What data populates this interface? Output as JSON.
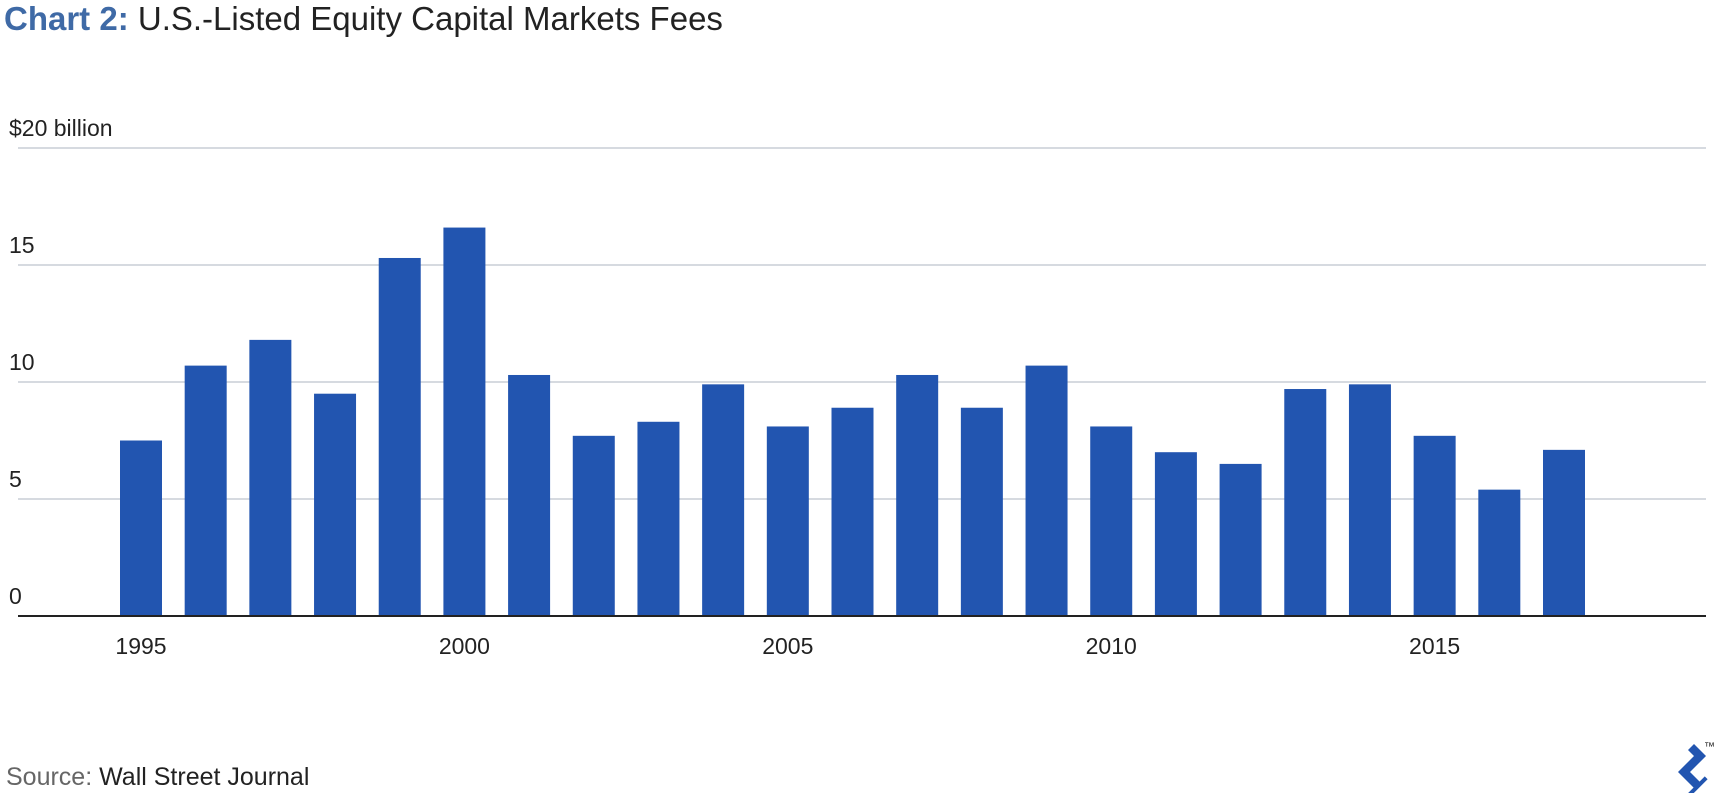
{
  "header": {
    "chart_label": "Chart 2:",
    "chart_title": "U.S.-Listed Equity Capital Markets Fees"
  },
  "footer": {
    "source_label": "Source:",
    "source_value": "Wall Street Journal",
    "logo_mark": "™"
  },
  "colors": {
    "bar": "#2255b0",
    "title_accent": "#3f6aa6",
    "gridline": "#c8ced6",
    "axis": "#222222"
  },
  "chart_data": {
    "type": "bar",
    "title": "U.S.-Listed Equity Capital Markets Fees",
    "ylabel": "",
    "xlabel": "",
    "x": [
      1995,
      1996,
      1997,
      1998,
      1999,
      2000,
      2001,
      2002,
      2003,
      2004,
      2005,
      2006,
      2007,
      2008,
      2009,
      2010,
      2011,
      2012,
      2013,
      2014,
      2015,
      2016,
      2017
    ],
    "values": [
      7.5,
      10.7,
      11.8,
      9.5,
      15.3,
      16.6,
      10.3,
      7.7,
      8.3,
      9.9,
      8.1,
      8.9,
      10.3,
      8.9,
      10.7,
      8.1,
      7.0,
      6.5,
      9.7,
      9.9,
      7.7,
      5.4,
      7.1
    ],
    "ylim": [
      0,
      20
    ],
    "yticks": [
      0,
      5,
      10,
      15,
      20
    ],
    "ytick_labels": [
      "0",
      "5",
      "10",
      "15",
      "$20 billion"
    ],
    "xticks": [
      1995,
      2000,
      2005,
      2010,
      2015
    ],
    "xtick_labels": [
      "1995",
      "2000",
      "2005",
      "2010",
      "2015"
    ],
    "grid": true,
    "legend": "none"
  }
}
